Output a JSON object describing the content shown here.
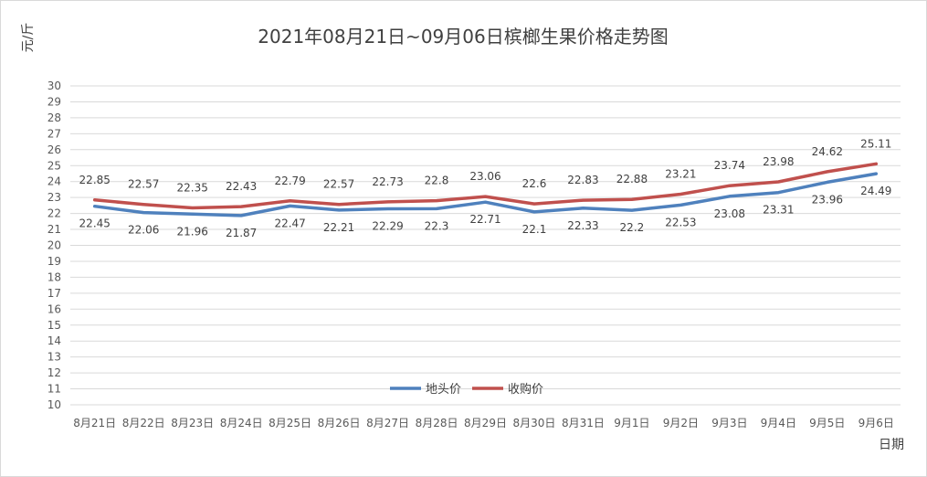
{
  "chart_data": {
    "type": "line",
    "title": "2021年08月21日~09月06日槟榔生果价格走势图",
    "ylabel": "元/斤",
    "xlabel": "日期",
    "ylim": [
      10,
      30
    ],
    "yticks": [
      10,
      11,
      12,
      13,
      14,
      15,
      16,
      17,
      18,
      19,
      20,
      21,
      22,
      23,
      24,
      25,
      26,
      27,
      28,
      29,
      30
    ],
    "grid": true,
    "legend_position": "inside-bottom-center",
    "categories": [
      "8月21日",
      "8月22日",
      "8月23日",
      "8月24日",
      "8月25日",
      "8月26日",
      "8月27日",
      "8月28日",
      "8月29日",
      "8月30日",
      "8月31日",
      "9月1日",
      "9月2日",
      "9月3日",
      "9月4日",
      "9月5日",
      "9月6日"
    ],
    "series": [
      {
        "name": "地头价",
        "color": "#4f81bd",
        "values": [
          22.45,
          22.06,
          21.96,
          21.87,
          22.47,
          22.21,
          22.29,
          22.3,
          22.71,
          22.1,
          22.33,
          22.2,
          22.53,
          23.08,
          23.31,
          23.96,
          24.49
        ]
      },
      {
        "name": "收购价",
        "color": "#c0504d",
        "values": [
          22.85,
          22.57,
          22.35,
          22.43,
          22.79,
          22.57,
          22.73,
          22.8,
          23.06,
          22.6,
          22.83,
          22.88,
          23.21,
          23.74,
          23.98,
          24.62,
          25.11
        ]
      }
    ]
  }
}
